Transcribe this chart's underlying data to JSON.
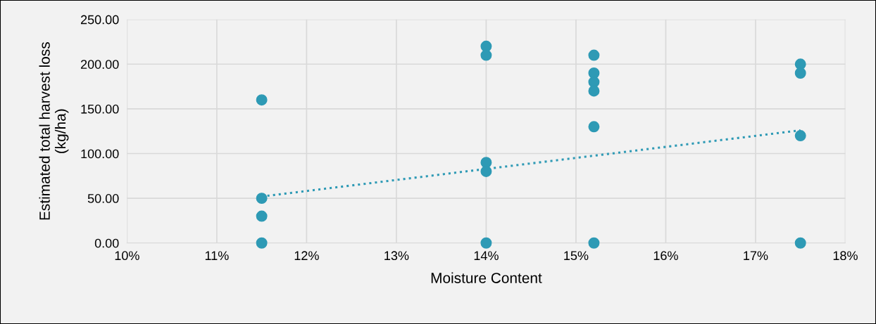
{
  "chart_data": {
    "type": "scatter",
    "xlabel": "Moisture Content",
    "ylabel": "Estimated total harvest loss\n(kg/ha)",
    "series": [
      {
        "color": "#2e9ab5",
        "x": [
          11.5,
          11.5,
          11.5,
          11.5,
          14,
          14,
          14,
          14,
          14,
          15.2,
          15.2,
          15.2,
          15.2,
          15.2,
          15.2,
          17.5,
          17.5,
          17.5,
          17.5
        ],
        "values": [
          160,
          50,
          30,
          0,
          220,
          210,
          90,
          80,
          0,
          210,
          190,
          180,
          170,
          130,
          0,
          200,
          190,
          120,
          0
        ],
        "marker": "circle"
      },
      {
        "type": "line",
        "color": "#2e9ab5",
        "x": [
          11.5,
          17.5
        ],
        "values": [
          52,
          126
        ],
        "line_style": "dotted",
        "marker": "none"
      }
    ],
    "xlim": [
      10,
      18
    ],
    "xticks": [
      {
        "value": 10,
        "label": "10%"
      },
      {
        "value": 11,
        "label": "11%"
      },
      {
        "value": 12,
        "label": "12%"
      },
      {
        "value": 13,
        "label": "13%"
      },
      {
        "value": 14,
        "label": "14%"
      },
      {
        "value": 15,
        "label": "15%"
      },
      {
        "value": 16,
        "label": "16%"
      },
      {
        "value": 17,
        "label": "17%"
      },
      {
        "value": 18,
        "label": "18%"
      }
    ],
    "ylim": [
      0,
      250
    ],
    "yticks": [
      {
        "value": 0,
        "label": "0.00"
      },
      {
        "value": 50,
        "label": "50.00"
      },
      {
        "value": 100,
        "label": "100.00"
      },
      {
        "value": 150,
        "label": "150.00"
      },
      {
        "value": 200,
        "label": "200.00"
      },
      {
        "value": 250,
        "label": "250.00"
      }
    ],
    "grid": true
  }
}
